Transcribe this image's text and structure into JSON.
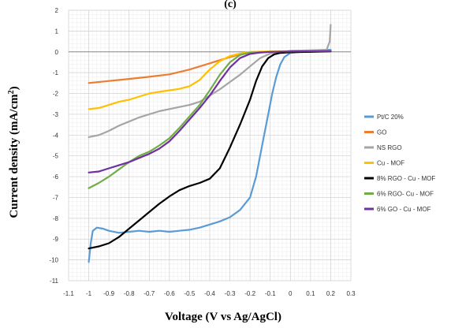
{
  "chart_data": {
    "type": "line",
    "top_label": "(c)",
    "xlabel": "Voltage (V vs Ag/AgCl)",
    "ylabel_main": "Current density (mA/cm",
    "ylabel_sup": "2",
    "ylabel_end": ")",
    "xlim": [
      -1.1,
      0.3
    ],
    "ylim": [
      -11,
      2
    ],
    "x_ticks": [
      "-1.1",
      "-1",
      "-0.9",
      "-0.8",
      "-0.7",
      "-0.6",
      "-0.5",
      "-0.4",
      "-0.3",
      "-0.2",
      "-0.1",
      "0",
      "0.1",
      "0.2",
      "0.3"
    ],
    "x_tick_values": [
      -1.1,
      -1.0,
      -0.9,
      -0.8,
      -0.7,
      -0.6,
      -0.5,
      -0.4,
      -0.3,
      -0.2,
      -0.1,
      0.0,
      0.1,
      0.2,
      0.3
    ],
    "y_ticks": [
      "2",
      "1",
      "0",
      "-1",
      "-2",
      "-3",
      "-4",
      "-5",
      "-6",
      "-7",
      "-8",
      "-9",
      "-10",
      "-11"
    ],
    "y_tick_values": [
      2,
      1,
      0,
      -1,
      -2,
      -3,
      -4,
      -5,
      -6,
      -7,
      -8,
      -9,
      -10,
      -11
    ],
    "grid": true,
    "legend_position": "right",
    "series": [
      {
        "name": "Pt/C 20%",
        "color": "#5B9BD5",
        "points": [
          [
            -1.0,
            -10.1
          ],
          [
            -0.99,
            -9.2
          ],
          [
            -0.98,
            -8.6
          ],
          [
            -0.96,
            -8.45
          ],
          [
            -0.93,
            -8.5
          ],
          [
            -0.9,
            -8.6
          ],
          [
            -0.85,
            -8.7
          ],
          [
            -0.8,
            -8.65
          ],
          [
            -0.75,
            -8.6
          ],
          [
            -0.7,
            -8.65
          ],
          [
            -0.65,
            -8.6
          ],
          [
            -0.6,
            -8.65
          ],
          [
            -0.55,
            -8.6
          ],
          [
            -0.5,
            -8.55
          ],
          [
            -0.45,
            -8.45
          ],
          [
            -0.4,
            -8.3
          ],
          [
            -0.35,
            -8.15
          ],
          [
            -0.3,
            -7.95
          ],
          [
            -0.25,
            -7.6
          ],
          [
            -0.2,
            -7.0
          ],
          [
            -0.17,
            -6.0
          ],
          [
            -0.15,
            -5.0
          ],
          [
            -0.13,
            -4.0
          ],
          [
            -0.11,
            -3.0
          ],
          [
            -0.09,
            -2.0
          ],
          [
            -0.07,
            -1.2
          ],
          [
            -0.05,
            -0.6
          ],
          [
            -0.03,
            -0.25
          ],
          [
            0.0,
            -0.05
          ],
          [
            0.1,
            0.05
          ],
          [
            0.2,
            0.1
          ]
        ]
      },
      {
        "name": "GO",
        "color": "#ED7D31",
        "points": [
          [
            -1.0,
            -1.5
          ],
          [
            -0.9,
            -1.4
          ],
          [
            -0.8,
            -1.3
          ],
          [
            -0.7,
            -1.2
          ],
          [
            -0.6,
            -1.08
          ],
          [
            -0.5,
            -0.85
          ],
          [
            -0.4,
            -0.55
          ],
          [
            -0.35,
            -0.4
          ],
          [
            -0.3,
            -0.25
          ],
          [
            -0.25,
            -0.12
          ],
          [
            -0.2,
            -0.05
          ],
          [
            -0.1,
            0.0
          ],
          [
            0.0,
            0.02
          ],
          [
            0.1,
            0.03
          ],
          [
            0.2,
            0.05
          ]
        ]
      },
      {
        "name": "NS RGO",
        "color": "#A5A5A5",
        "points": [
          [
            -1.0,
            -4.1
          ],
          [
            -0.95,
            -4.0
          ],
          [
            -0.9,
            -3.8
          ],
          [
            -0.85,
            -3.55
          ],
          [
            -0.8,
            -3.35
          ],
          [
            -0.75,
            -3.15
          ],
          [
            -0.7,
            -3.0
          ],
          [
            -0.65,
            -2.85
          ],
          [
            -0.6,
            -2.75
          ],
          [
            -0.55,
            -2.65
          ],
          [
            -0.5,
            -2.55
          ],
          [
            -0.45,
            -2.4
          ],
          [
            -0.4,
            -2.1
          ],
          [
            -0.35,
            -1.8
          ],
          [
            -0.3,
            -1.45
          ],
          [
            -0.25,
            -1.1
          ],
          [
            -0.2,
            -0.7
          ],
          [
            -0.15,
            -0.3
          ],
          [
            -0.1,
            -0.08
          ],
          [
            0.0,
            0.05
          ],
          [
            0.1,
            0.08
          ],
          [
            0.18,
            0.1
          ],
          [
            0.195,
            0.5
          ],
          [
            0.2,
            1.3
          ]
        ]
      },
      {
        "name": "Cu - MOF",
        "color": "#FFC000",
        "points": [
          [
            -1.0,
            -2.75
          ],
          [
            -0.95,
            -2.7
          ],
          [
            -0.9,
            -2.55
          ],
          [
            -0.85,
            -2.4
          ],
          [
            -0.8,
            -2.3
          ],
          [
            -0.75,
            -2.15
          ],
          [
            -0.7,
            -2.0
          ],
          [
            -0.65,
            -1.92
          ],
          [
            -0.6,
            -1.85
          ],
          [
            -0.55,
            -1.78
          ],
          [
            -0.5,
            -1.65
          ],
          [
            -0.45,
            -1.35
          ],
          [
            -0.4,
            -0.85
          ],
          [
            -0.35,
            -0.45
          ],
          [
            -0.3,
            -0.2
          ],
          [
            -0.25,
            -0.08
          ],
          [
            -0.2,
            0.0
          ],
          [
            -0.1,
            0.02
          ],
          [
            0.0,
            0.03
          ],
          [
            0.2,
            0.05
          ]
        ]
      },
      {
        "name": "8% RGO - Cu - MOF",
        "color": "#000000",
        "points": [
          [
            -1.0,
            -9.45
          ],
          [
            -0.95,
            -9.35
          ],
          [
            -0.9,
            -9.2
          ],
          [
            -0.85,
            -8.9
          ],
          [
            -0.8,
            -8.5
          ],
          [
            -0.75,
            -8.1
          ],
          [
            -0.7,
            -7.7
          ],
          [
            -0.65,
            -7.3
          ],
          [
            -0.6,
            -6.95
          ],
          [
            -0.55,
            -6.65
          ],
          [
            -0.5,
            -6.45
          ],
          [
            -0.45,
            -6.3
          ],
          [
            -0.4,
            -6.1
          ],
          [
            -0.35,
            -5.6
          ],
          [
            -0.3,
            -4.6
          ],
          [
            -0.25,
            -3.5
          ],
          [
            -0.2,
            -2.3
          ],
          [
            -0.17,
            -1.4
          ],
          [
            -0.14,
            -0.7
          ],
          [
            -0.11,
            -0.3
          ],
          [
            -0.08,
            -0.12
          ],
          [
            -0.05,
            -0.05
          ],
          [
            0.0,
            -0.02
          ],
          [
            0.1,
            0.0
          ],
          [
            0.2,
            0.02
          ]
        ]
      },
      {
        "name": "6% RGO- Cu - MOF",
        "color": "#70AD47",
        "points": [
          [
            -1.0,
            -6.55
          ],
          [
            -0.95,
            -6.3
          ],
          [
            -0.9,
            -6.0
          ],
          [
            -0.85,
            -5.65
          ],
          [
            -0.8,
            -5.3
          ],
          [
            -0.75,
            -5.0
          ],
          [
            -0.7,
            -4.8
          ],
          [
            -0.65,
            -4.5
          ],
          [
            -0.6,
            -4.15
          ],
          [
            -0.55,
            -3.65
          ],
          [
            -0.5,
            -3.1
          ],
          [
            -0.45,
            -2.55
          ],
          [
            -0.4,
            -1.85
          ],
          [
            -0.35,
            -1.1
          ],
          [
            -0.3,
            -0.5
          ],
          [
            -0.25,
            -0.15
          ],
          [
            -0.2,
            -0.03
          ],
          [
            -0.1,
            0.0
          ],
          [
            0.0,
            0.02
          ],
          [
            0.2,
            0.04
          ]
        ]
      },
      {
        "name": "6% GO - Cu - MOF",
        "color": "#7030A0",
        "points": [
          [
            -1.0,
            -5.8
          ],
          [
            -0.95,
            -5.75
          ],
          [
            -0.9,
            -5.6
          ],
          [
            -0.85,
            -5.45
          ],
          [
            -0.8,
            -5.3
          ],
          [
            -0.75,
            -5.1
          ],
          [
            -0.7,
            -4.9
          ],
          [
            -0.65,
            -4.65
          ],
          [
            -0.6,
            -4.3
          ],
          [
            -0.55,
            -3.8
          ],
          [
            -0.5,
            -3.25
          ],
          [
            -0.45,
            -2.7
          ],
          [
            -0.4,
            -2.1
          ],
          [
            -0.35,
            -1.4
          ],
          [
            -0.3,
            -0.75
          ],
          [
            -0.25,
            -0.3
          ],
          [
            -0.2,
            -0.1
          ],
          [
            -0.15,
            -0.03
          ],
          [
            -0.1,
            0.0
          ],
          [
            0.0,
            0.02
          ],
          [
            0.2,
            0.04
          ]
        ]
      }
    ]
  }
}
